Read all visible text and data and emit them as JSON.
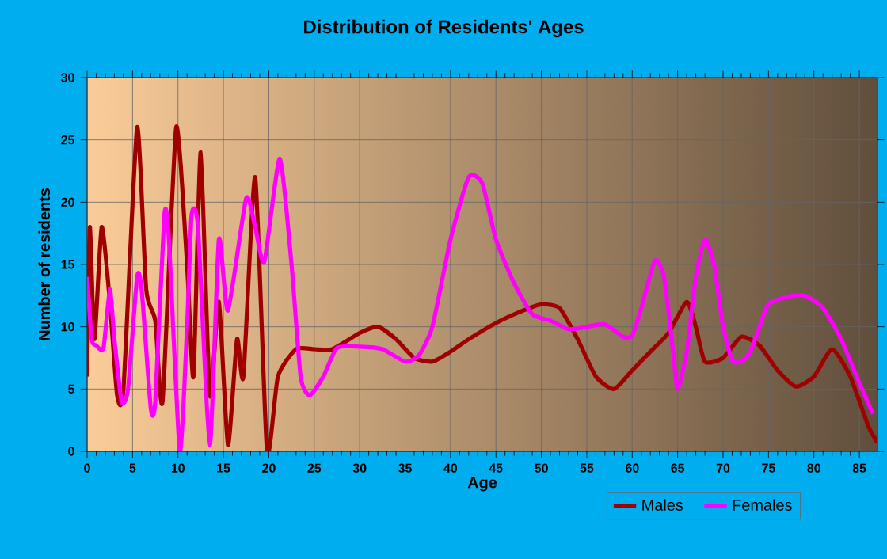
{
  "chart_data": {
    "type": "line",
    "title": "Distribution of Residents' Ages",
    "xlabel": "Age",
    "ylabel": "Number of residents",
    "xlim": [
      0,
      87
    ],
    "ylim": [
      0,
      30
    ],
    "xticks": [
      0,
      5,
      10,
      15,
      20,
      25,
      30,
      35,
      40,
      45,
      50,
      55,
      60,
      65,
      70,
      75,
      80,
      85
    ],
    "yticks": [
      0,
      5,
      10,
      15,
      20,
      25,
      30
    ],
    "grid": true,
    "legend": "bottom",
    "series": [
      {
        "name": "Males",
        "color": "#a00000",
        "x": [
          0,
          0.3,
          0.8,
          1.6,
          2.5,
          3.3,
          4,
          5.5,
          6.5,
          7.5,
          8.3,
          9.8,
          11,
          11.7,
          12.5,
          13.5,
          14.5,
          15.5,
          16.5,
          17.2,
          18.5,
          19.8,
          21,
          23,
          25,
          27,
          30,
          32,
          34,
          36,
          38,
          40,
          42,
          45,
          48,
          50,
          52,
          54,
          56,
          58,
          60,
          62,
          64,
          66,
          67,
          68,
          70,
          72,
          74,
          76,
          78,
          80,
          82,
          84,
          86,
          87
        ],
        "values": [
          6,
          18,
          9,
          18,
          12,
          4.5,
          5,
          26,
          13,
          10.5,
          4,
          26,
          15,
          6,
          24,
          4.5,
          12,
          0.5,
          9,
          6,
          22,
          0,
          6,
          8.2,
          8.2,
          8.2,
          9.5,
          10,
          9,
          7.5,
          7.2,
          8,
          9,
          10.3,
          11.3,
          11.8,
          11.5,
          9,
          6,
          5,
          6.5,
          8,
          9.5,
          12,
          10,
          7.2,
          7.5,
          9.2,
          8.5,
          6.5,
          5.2,
          6,
          8.2,
          6,
          2,
          0.7
        ]
      },
      {
        "name": "Females",
        "color": "#ff00ff",
        "x": [
          0,
          0.5,
          1,
          1.8,
          2.5,
          3,
          3.8,
          4.5,
          5.5,
          6,
          7,
          7.5,
          8.5,
          9,
          10.2,
          11,
          11.5,
          12.2,
          13.5,
          14.5,
          15.5,
          17.5,
          18.5,
          19.5,
          21.2,
          22.5,
          23.5,
          24.5,
          26,
          27.5,
          30,
          32.5,
          35,
          36.5,
          38,
          40,
          42,
          43.5,
          45,
          47,
          49,
          51,
          53,
          55,
          57,
          59,
          60,
          61,
          62.5,
          63.5,
          64.5,
          65,
          66,
          67,
          68,
          69,
          70,
          71,
          72,
          73,
          74,
          75,
          77,
          79,
          81,
          83,
          85,
          86.5
        ],
        "values": [
          14,
          9,
          8.5,
          8.3,
          13,
          9,
          4,
          5,
          14,
          13,
          3.5,
          4,
          19,
          17,
          0,
          10,
          19,
          18,
          0.5,
          17,
          11.3,
          20.3,
          18,
          15.2,
          23.5,
          15,
          6,
          4.5,
          6,
          8.3,
          8.4,
          8.2,
          7.2,
          7.7,
          10,
          17,
          22,
          21.5,
          17,
          13.5,
          11,
          10.5,
          9.8,
          10,
          10.2,
          9.2,
          9.3,
          11.5,
          15.3,
          14,
          8,
          5,
          8,
          14,
          17,
          15,
          10,
          7.3,
          7.2,
          8,
          10,
          11.8,
          12.4,
          12.5,
          11.5,
          9,
          5.5,
          3
        ]
      }
    ]
  }
}
